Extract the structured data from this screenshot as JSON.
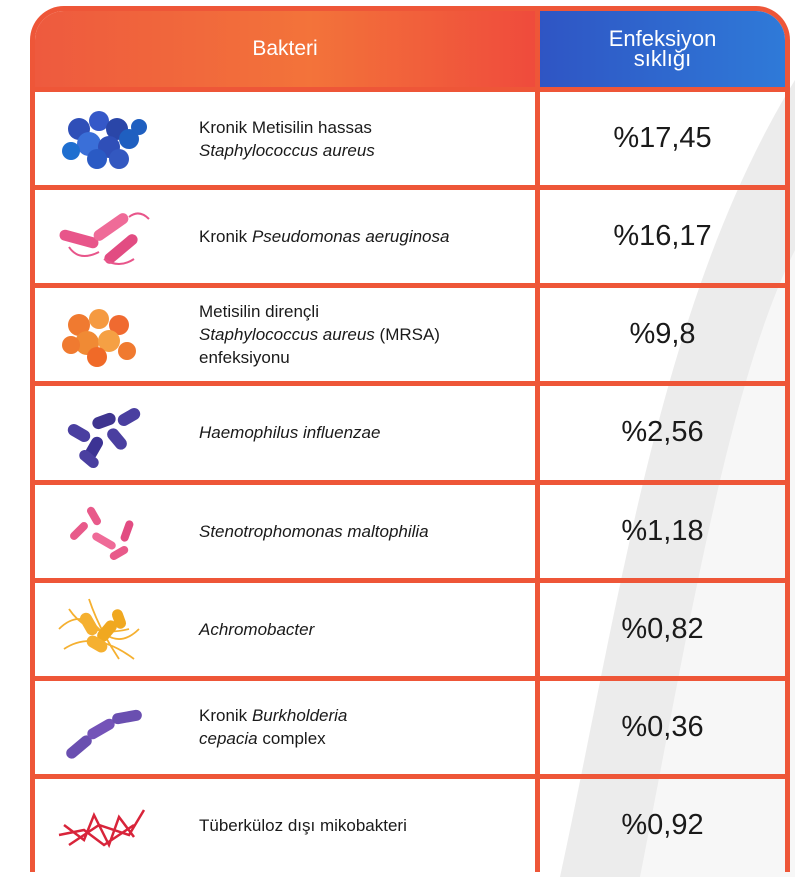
{
  "header": {
    "bacteria": "Bakteri",
    "frequency": [
      "Enfeksiyon",
      "sıklığı"
    ]
  },
  "rows": [
    {
      "name": [
        [
          {
            "text": "Kronik Metisilin hassas",
            "italic": false
          }
        ],
        [
          {
            "text": "Staphylococcus aureus",
            "italic": true
          }
        ]
      ],
      "frequency": "%17,45"
    },
    {
      "name": [
        [
          {
            "text": "Kronik",
            "italic": false
          },
          {
            "text": "Pseudomonas aeruginosa",
            "italic": true
          }
        ]
      ],
      "frequency": "%16,17"
    },
    {
      "name": [
        [
          {
            "text": "Metisilin dirençli",
            "italic": false
          }
        ],
        [
          {
            "text": "Staphylococcus aureus",
            "italic": true
          },
          {
            "text": "(MRSA)",
            "italic": false
          }
        ],
        [
          {
            "text": "enfeksiyonu",
            "italic": false
          }
        ]
      ],
      "frequency": "%9,8"
    },
    {
      "name": [
        [
          {
            "text": "Haemophilus influenzae",
            "italic": true
          }
        ]
      ],
      "frequency": "%2,56"
    },
    {
      "name": [
        [
          {
            "text": "Stenotrophomonas maltophilia",
            "italic": true
          }
        ]
      ],
      "frequency": "%1,18"
    },
    {
      "name": [
        [
          {
            "text": "Achromobacter",
            "italic": true
          }
        ]
      ],
      "frequency": "%0,82"
    },
    {
      "name": [
        [
          {
            "text": "Kronik",
            "italic": false
          },
          {
            "text": "Burkholderia",
            "italic": true
          }
        ],
        [
          {
            "text": "cepacia",
            "italic": true
          },
          {
            "text": "complex",
            "italic": false
          }
        ]
      ],
      "frequency": "%0,36"
    },
    {
      "name": [
        [
          {
            "text": "Tüberküloz dışı mikobakteri",
            "italic": false
          }
        ]
      ],
      "frequency": "%0,92"
    }
  ]
}
